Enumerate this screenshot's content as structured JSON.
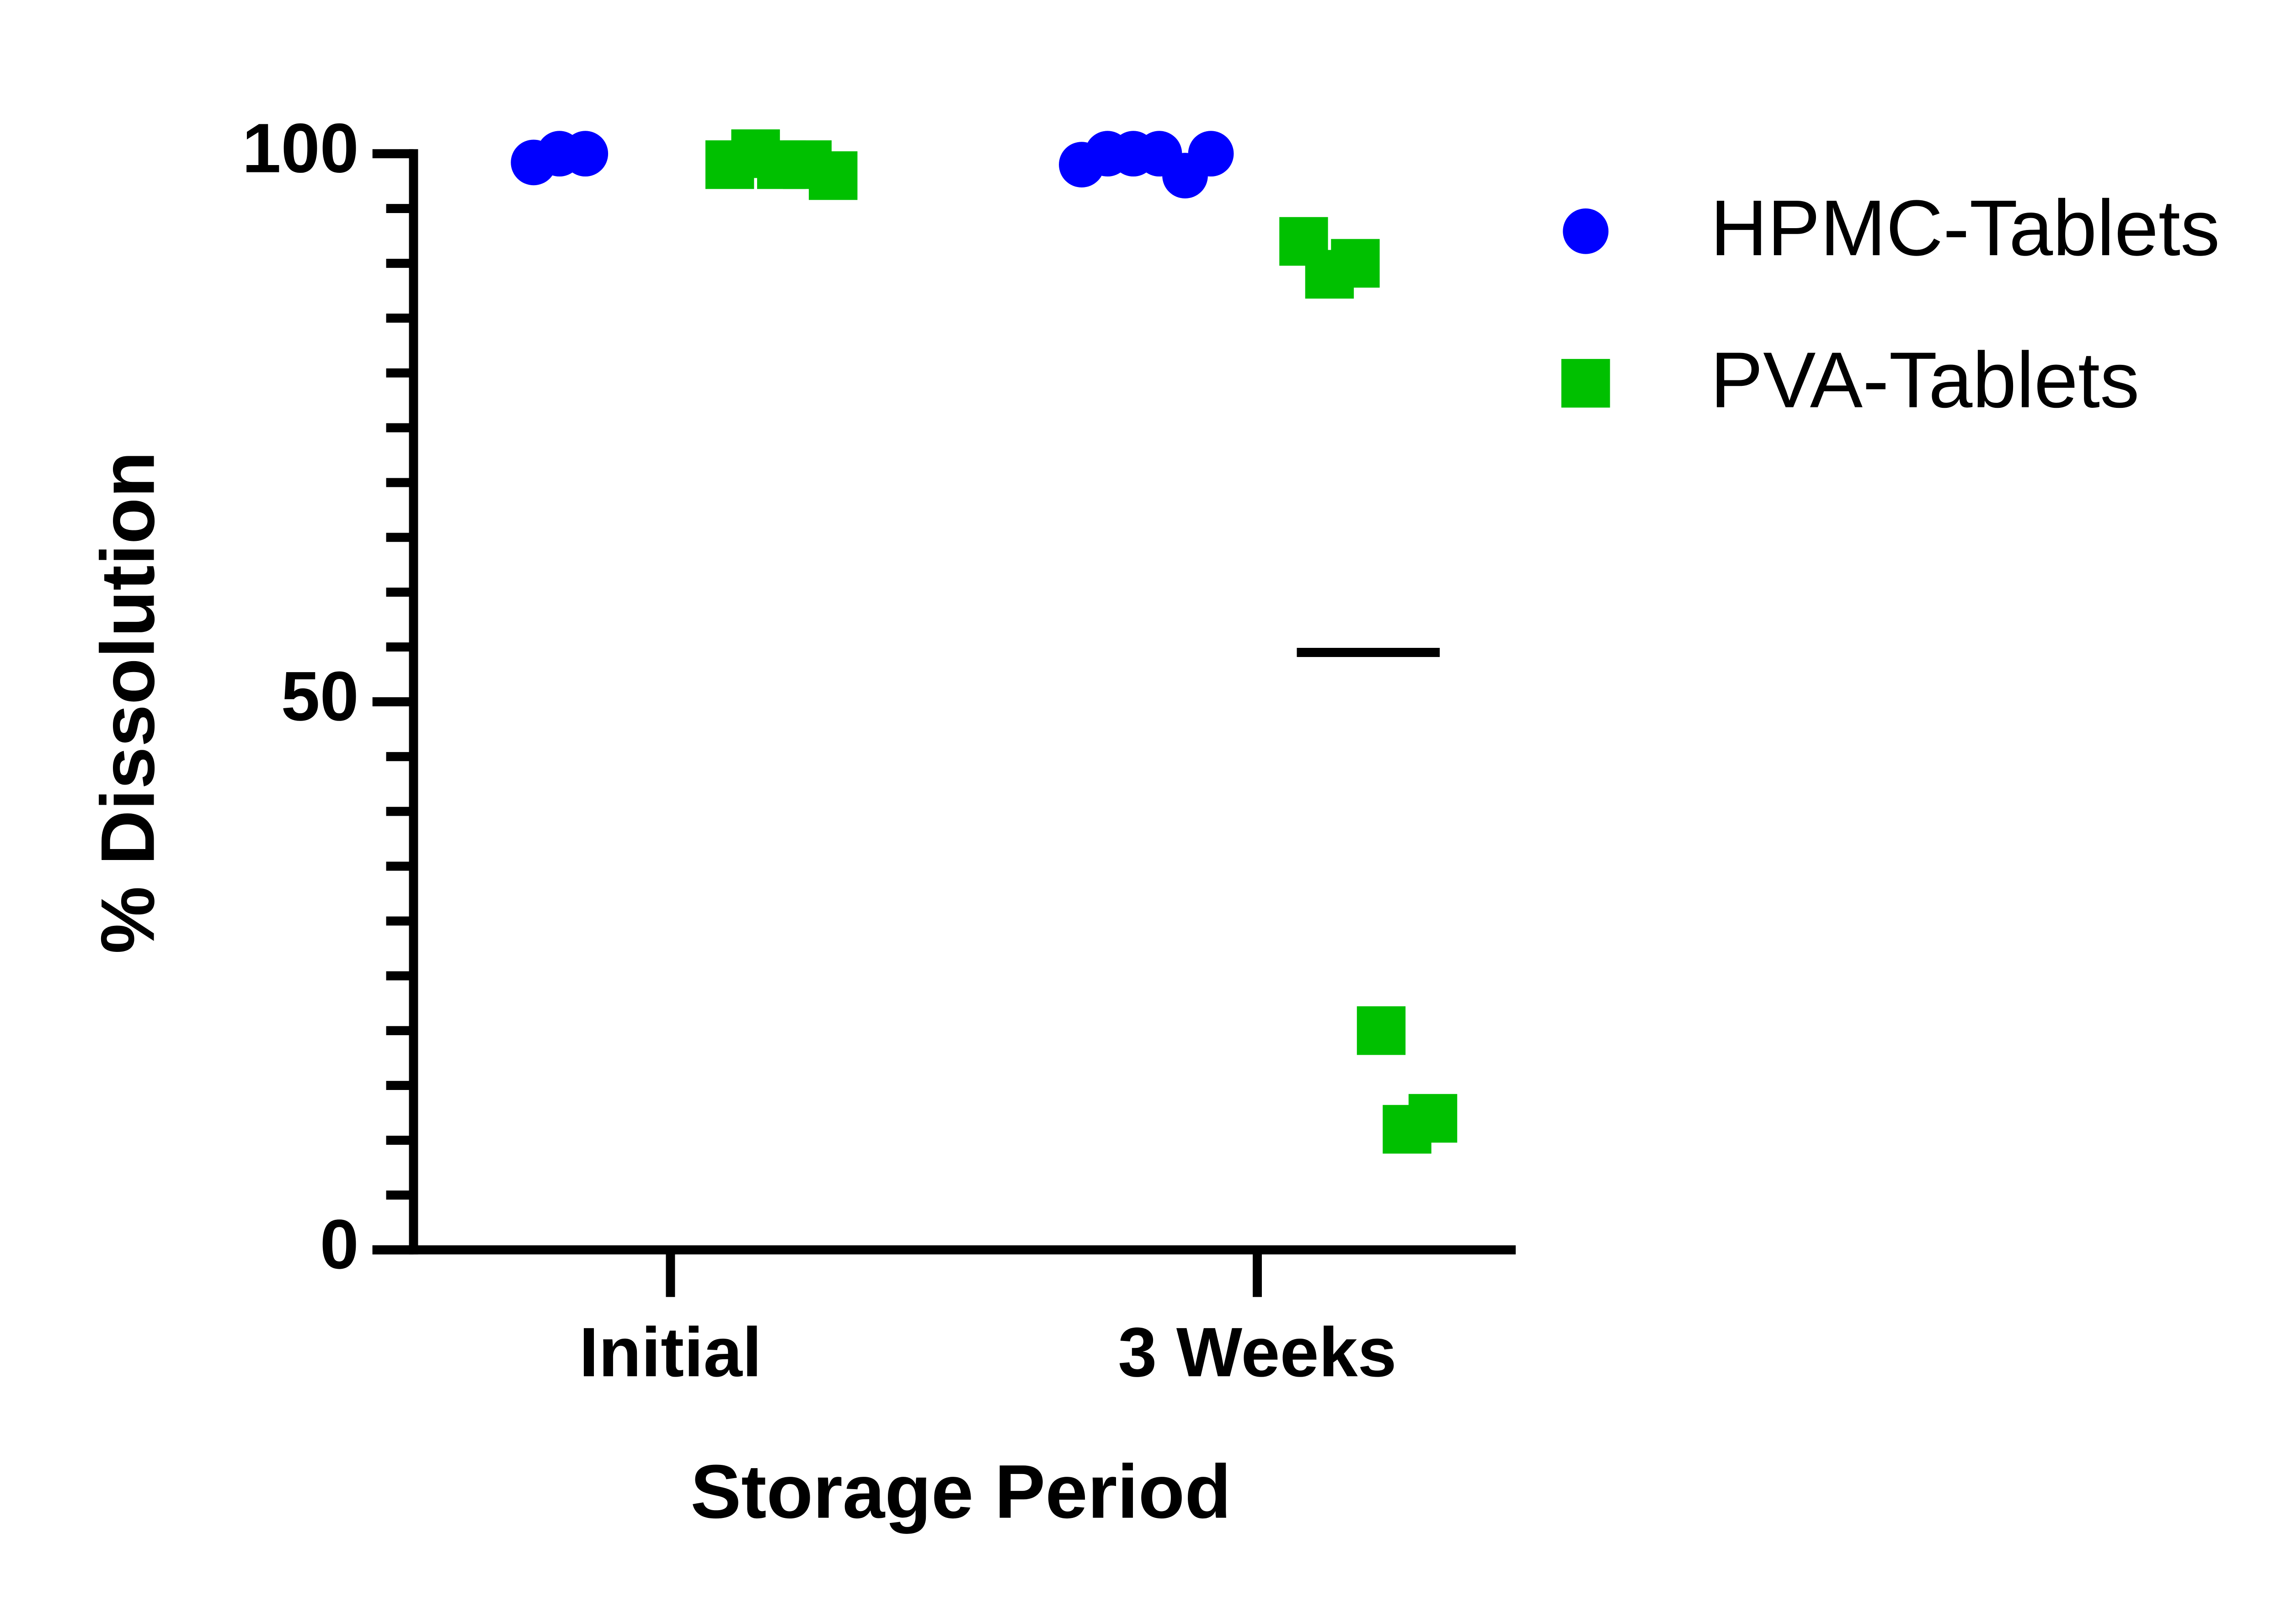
{
  "chart_data": {
    "type": "scatter",
    "xlabel": "Storage Period",
    "ylabel": "% Dissolution",
    "categories": [
      "Initial",
      "3 Weeks"
    ],
    "ylim": [
      0,
      100
    ],
    "yticks": [
      0,
      50,
      100
    ],
    "yminorticks": [
      5,
      10,
      15,
      20,
      25,
      30,
      35,
      40,
      45,
      55,
      60,
      65,
      70,
      75,
      80,
      85,
      90,
      95
    ],
    "legend": "upper right",
    "series": [
      {
        "name": "HPMC-Tablets",
        "color": "#0000ff",
        "marker": "circle",
        "values": [
          [
            99.2,
            100,
            100
          ],
          [
            99,
            100,
            100,
            100,
            98,
            100
          ]
        ]
      },
      {
        "name": "PVA-Tablets",
        "color": "#00c000",
        "marker": "square",
        "values": [
          [
            99,
            100,
            99,
            99,
            98
          ],
          [
            92,
            89,
            90,
            20,
            11,
            12
          ]
        ],
        "medians": [
          null,
          54.5
        ]
      }
    ]
  }
}
